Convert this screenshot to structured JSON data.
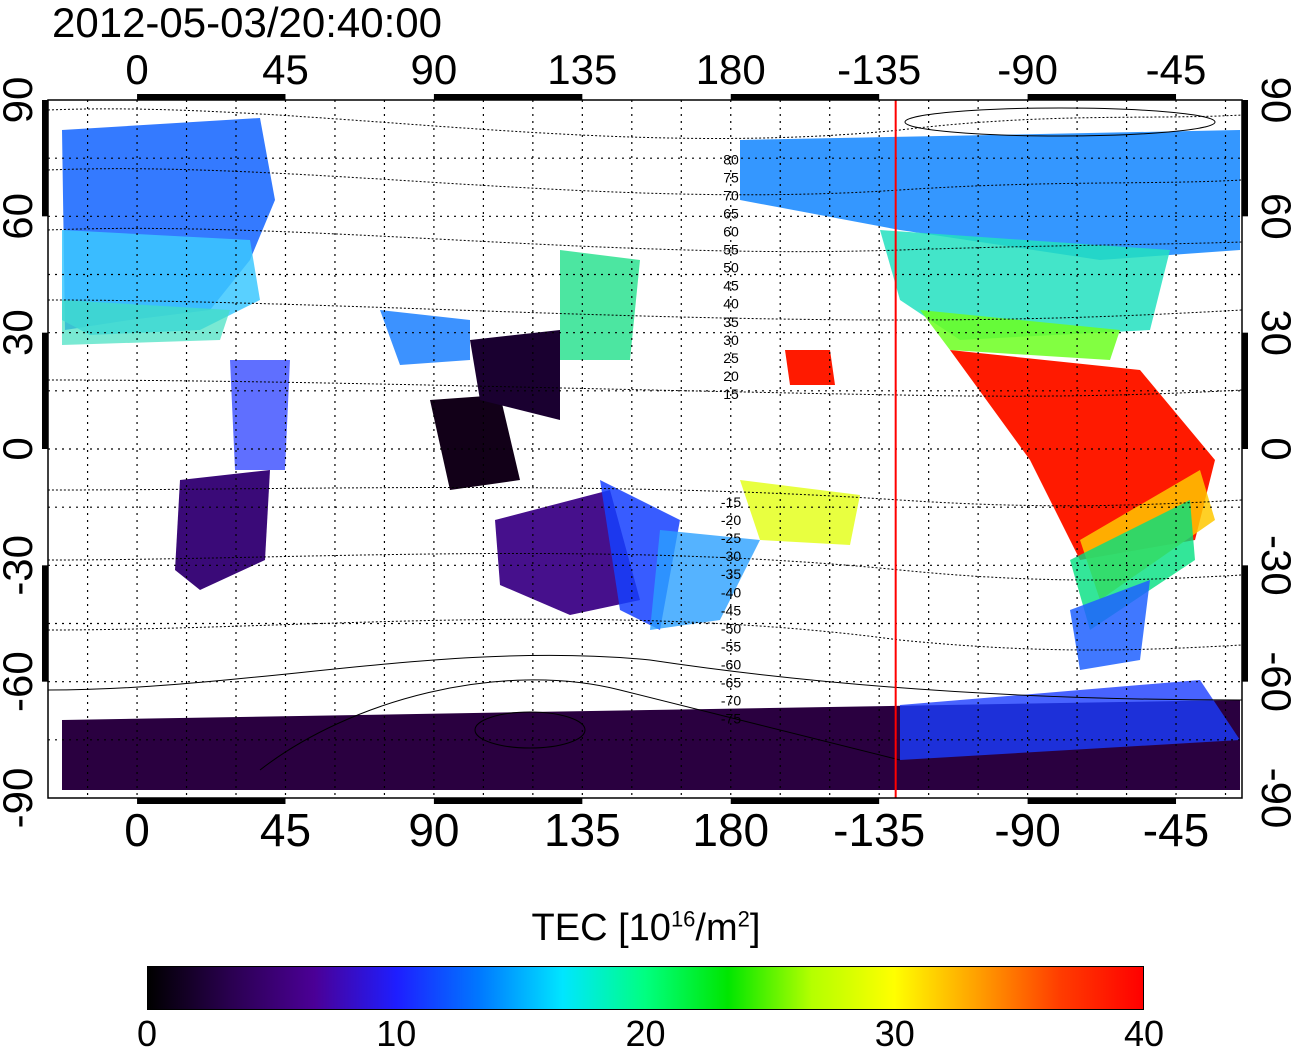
{
  "title": "2012-05-03/20:40:00",
  "map": {
    "top_lon_labels": [
      "0",
      "45",
      "90",
      "135",
      "180",
      "-135",
      "-90",
      "-45"
    ],
    "bottom_lon_labels": [
      "0",
      "45",
      "90",
      "135",
      "180",
      "-135",
      "-90",
      "-45"
    ],
    "left_lat_labels": [
      "90",
      "60",
      "30",
      "0",
      "-30",
      "-60",
      "-90"
    ],
    "right_lat_labels": [
      "90",
      "60",
      "30",
      "0",
      "-30",
      "-60",
      "-90"
    ],
    "lon_tick_values": [
      0,
      45,
      90,
      135,
      180,
      225,
      270,
      315
    ],
    "lat_tick_values": [
      90,
      60,
      30,
      0,
      -30,
      -60,
      -90
    ],
    "contour_labels": [
      "80",
      "75",
      "70",
      "65",
      "60",
      "55",
      "50",
      "45",
      "40",
      "35",
      "30",
      "25",
      "20",
      "15",
      "-15",
      "-20",
      "-25",
      "-30",
      "-35",
      "-40",
      "-45",
      "-50",
      "-55",
      "-60",
      "-65",
      "-70",
      "-75"
    ],
    "terminator_longitude": 230,
    "terminator_color": "#ff0000"
  },
  "colorbar": {
    "title_main": "TEC  [10",
    "title_sup1": "16",
    "title_mid": "/m",
    "title_sup2": "2",
    "title_end": "]",
    "ticks": [
      "0",
      "10",
      "20",
      "30",
      "40"
    ],
    "min": 0,
    "max": 40,
    "colors": [
      "#000000",
      "#2a0050",
      "#4b0096",
      "#1e1eff",
      "#0078ff",
      "#00e6ff",
      "#00ff80",
      "#00e600",
      "#b4ff00",
      "#ffff00",
      "#ffa000",
      "#ff3c00",
      "#ff0000"
    ]
  }
}
